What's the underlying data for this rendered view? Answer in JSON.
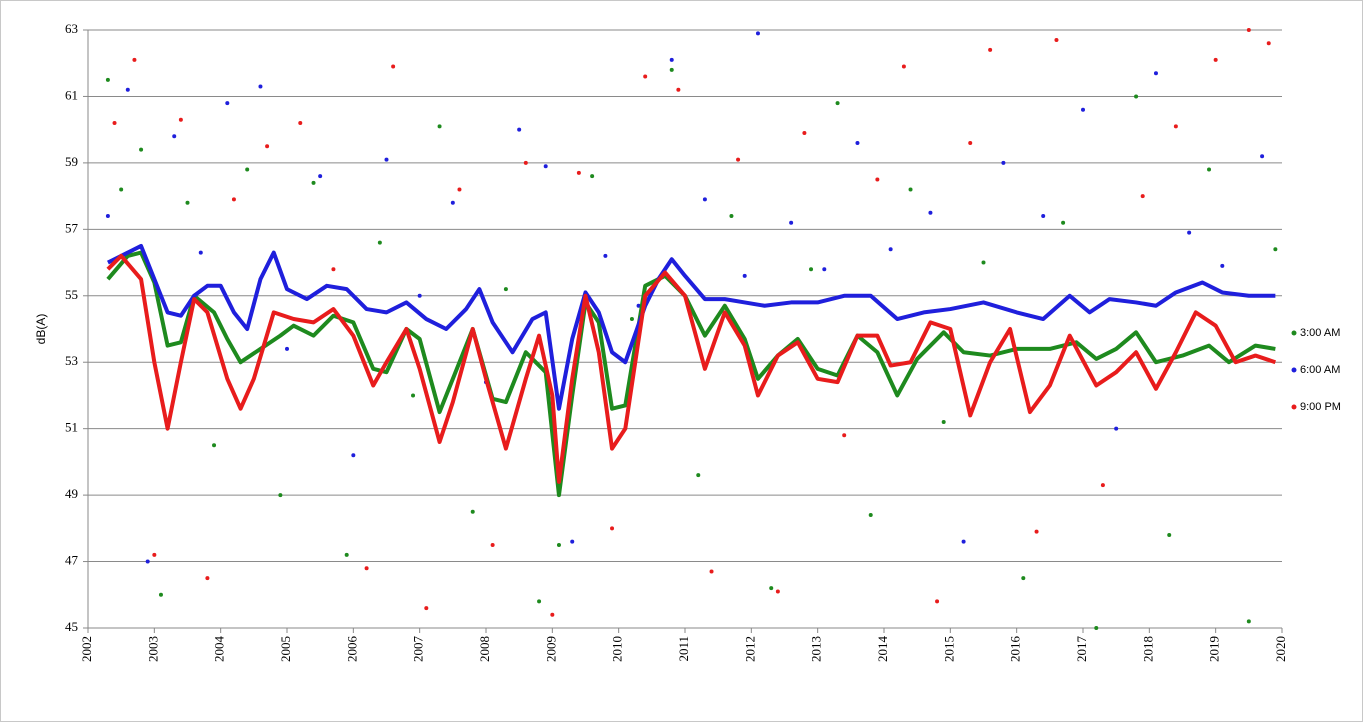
{
  "chart_data": {
    "type": "scatter",
    "y_label": "dB(A)",
    "xlim": [
      2002,
      2020
    ],
    "xticks": [
      2002,
      2003,
      2004,
      2005,
      2006,
      2007,
      2008,
      2009,
      2010,
      2011,
      2012,
      2013,
      2014,
      2015,
      2016,
      2017,
      2018,
      2019,
      2020
    ],
    "ylim": [
      45,
      63
    ],
    "yticks": [
      45,
      47,
      49,
      51,
      53,
      55,
      57,
      59,
      61,
      63
    ],
    "grid": true,
    "legend": "right",
    "series": [
      {
        "name": "3:00 AM",
        "color": "#1e8a1e",
        "x": [
          2002.3,
          2002.5,
          2002.8,
          2003.1,
          2003.5,
          2003.9,
          2004.4,
          2004.9,
          2005.4,
          2005.9,
          2006.4,
          2006.9,
          2007.3,
          2007.8,
          2008.3,
          2008.8,
          2009.1,
          2009.6,
          2010.2,
          2010.8,
          2011.2,
          2011.7,
          2012.3,
          2012.9,
          2013.3,
          2013.8,
          2014.4,
          2014.9,
          2015.5,
          2016.1,
          2016.7,
          2017.2,
          2017.8,
          2018.3,
          2018.9,
          2019.5,
          2019.9
        ],
        "values": [
          61.5,
          58.2,
          59.4,
          46.0,
          57.8,
          50.5,
          58.8,
          49.0,
          58.4,
          47.2,
          56.6,
          52.0,
          60.1,
          48.5,
          55.2,
          45.8,
          47.5,
          58.6,
          54.3,
          61.8,
          49.6,
          57.4,
          46.2,
          55.8,
          60.8,
          48.4,
          58.2,
          51.2,
          56.0,
          46.5,
          57.2,
          45.0,
          61.0,
          47.8,
          58.8,
          45.2,
          56.4
        ],
        "trend_x": [
          2002.3,
          2002.6,
          2002.8,
          2003.0,
          2003.2,
          2003.4,
          2003.6,
          2003.9,
          2004.1,
          2004.3,
          2004.6,
          2004.9,
          2005.1,
          2005.4,
          2005.7,
          2006.0,
          2006.3,
          2006.5,
          2006.8,
          2007.0,
          2007.3,
          2007.5,
          2007.8,
          2008.1,
          2008.3,
          2008.6,
          2008.9,
          2009.1,
          2009.3,
          2009.5,
          2009.7,
          2009.9,
          2010.1,
          2010.4,
          2010.7,
          2011.0,
          2011.3,
          2011.6,
          2011.9,
          2012.1,
          2012.4,
          2012.7,
          2013.0,
          2013.3,
          2013.6,
          2013.9,
          2014.2,
          2014.5,
          2014.9,
          2015.2,
          2015.6,
          2016.0,
          2016.5,
          2016.9,
          2017.2,
          2017.5,
          2017.8,
          2018.1,
          2018.5,
          2018.9,
          2019.2,
          2019.6,
          2019.9
        ],
        "trend_values": [
          55.5,
          56.2,
          56.3,
          55.4,
          53.5,
          53.6,
          55.0,
          54.5,
          53.7,
          53.0,
          53.4,
          53.8,
          54.1,
          53.8,
          54.4,
          54.2,
          52.8,
          52.7,
          54.0,
          53.7,
          51.5,
          52.5,
          54.0,
          51.9,
          51.8,
          53.3,
          52.7,
          49.0,
          52.0,
          54.8,
          54.2,
          51.6,
          51.7,
          55.3,
          55.6,
          55.0,
          53.8,
          54.7,
          53.7,
          52.5,
          53.2,
          53.7,
          52.8,
          52.6,
          53.8,
          53.3,
          52.0,
          53.1,
          53.9,
          53.3,
          53.2,
          53.4,
          53.4,
          53.6,
          53.1,
          53.4,
          53.9,
          53.0,
          53.2,
          53.5,
          53.0,
          53.5,
          53.4
        ]
      },
      {
        "name": "6:00 AM",
        "color": "#1f1fdc",
        "x": [
          2002.3,
          2002.6,
          2002.9,
          2003.3,
          2003.7,
          2004.1,
          2004.6,
          2005.0,
          2005.5,
          2006.0,
          2006.5,
          2007.0,
          2007.5,
          2008.0,
          2008.5,
          2008.9,
          2009.3,
          2009.8,
          2010.3,
          2010.8,
          2011.3,
          2011.9,
          2012.1,
          2012.6,
          2013.1,
          2013.6,
          2014.1,
          2014.7,
          2015.2,
          2015.8,
          2016.4,
          2017.0,
          2017.5,
          2018.1,
          2018.6,
          2019.1,
          2019.7
        ],
        "values": [
          57.4,
          61.2,
          47.0,
          59.8,
          56.3,
          60.8,
          61.3,
          53.4,
          58.6,
          50.2,
          59.1,
          55.0,
          57.8,
          52.4,
          60.0,
          58.9,
          47.6,
          56.2,
          54.7,
          62.1,
          57.9,
          55.6,
          62.9,
          57.2,
          55.8,
          59.6,
          56.4,
          57.5,
          47.6,
          59.0,
          57.4,
          60.6,
          51.0,
          61.7,
          56.9,
          55.9,
          59.2
        ],
        "trend_x": [
          2002.3,
          2002.6,
          2002.8,
          2003.0,
          2003.2,
          2003.4,
          2003.6,
          2003.8,
          2004.0,
          2004.2,
          2004.4,
          2004.6,
          2004.8,
          2005.0,
          2005.3,
          2005.6,
          2005.9,
          2006.2,
          2006.5,
          2006.8,
          2007.1,
          2007.4,
          2007.7,
          2007.9,
          2008.1,
          2008.4,
          2008.7,
          2008.9,
          2009.1,
          2009.3,
          2009.5,
          2009.7,
          2009.9,
          2010.1,
          2010.4,
          2010.6,
          2010.8,
          2011.0,
          2011.3,
          2011.6,
          2011.9,
          2012.2,
          2012.6,
          2013.0,
          2013.4,
          2013.8,
          2014.2,
          2014.6,
          2015.0,
          2015.5,
          2016.0,
          2016.4,
          2016.8,
          2017.1,
          2017.4,
          2017.8,
          2018.1,
          2018.4,
          2018.8,
          2019.1,
          2019.5,
          2019.9
        ],
        "trend_values": [
          56.0,
          56.3,
          56.5,
          55.5,
          54.5,
          54.4,
          55.0,
          55.3,
          55.3,
          54.5,
          54.0,
          55.5,
          56.3,
          55.2,
          54.9,
          55.3,
          55.2,
          54.6,
          54.5,
          54.8,
          54.3,
          54.0,
          54.6,
          55.2,
          54.2,
          53.3,
          54.3,
          54.5,
          51.6,
          53.7,
          55.1,
          54.5,
          53.3,
          53.0,
          54.7,
          55.5,
          56.1,
          55.6,
          54.9,
          54.9,
          54.8,
          54.7,
          54.8,
          54.8,
          55.0,
          55.0,
          54.3,
          54.5,
          54.6,
          54.8,
          54.5,
          54.3,
          55.0,
          54.5,
          54.9,
          54.8,
          54.7,
          55.1,
          55.4,
          55.1,
          55.0,
          55.0
        ]
      },
      {
        "name": "9:00 PM",
        "color": "#e81c1c",
        "x": [
          2002.4,
          2002.7,
          2003.0,
          2003.4,
          2003.8,
          2004.2,
          2004.7,
          2005.2,
          2005.7,
          2006.2,
          2006.6,
          2007.1,
          2007.6,
          2008.1,
          2008.6,
          2009.0,
          2009.4,
          2009.9,
          2010.4,
          2010.9,
          2011.4,
          2011.8,
          2012.4,
          2012.8,
          2013.4,
          2013.9,
          2014.3,
          2014.8,
          2015.3,
          2015.6,
          2016.3,
          2016.6,
          2017.3,
          2017.9,
          2018.4,
          2019.0,
          2019.5,
          2019.8
        ],
        "values": [
          60.2,
          62.1,
          47.2,
          60.3,
          46.5,
          57.9,
          59.5,
          60.2,
          55.8,
          46.8,
          61.9,
          45.6,
          58.2,
          47.5,
          59.0,
          45.4,
          58.7,
          48.0,
          61.6,
          61.2,
          46.7,
          59.1,
          46.1,
          59.9,
          50.8,
          58.5,
          61.9,
          45.8,
          59.6,
          62.4,
          47.9,
          62.7,
          49.3,
          58.0,
          60.1,
          62.1,
          63.0,
          62.6
        ],
        "trend_x": [
          2002.3,
          2002.5,
          2002.8,
          2003.0,
          2003.2,
          2003.4,
          2003.6,
          2003.8,
          2004.1,
          2004.3,
          2004.5,
          2004.8,
          2005.1,
          2005.4,
          2005.7,
          2006.0,
          2006.3,
          2006.5,
          2006.8,
          2007.0,
          2007.3,
          2007.5,
          2007.8,
          2008.0,
          2008.3,
          2008.6,
          2008.8,
          2009.0,
          2009.1,
          2009.3,
          2009.5,
          2009.7,
          2009.9,
          2010.1,
          2010.4,
          2010.7,
          2011.0,
          2011.3,
          2011.6,
          2011.9,
          2012.1,
          2012.4,
          2012.7,
          2013.0,
          2013.3,
          2013.6,
          2013.9,
          2014.1,
          2014.4,
          2014.7,
          2015.0,
          2015.3,
          2015.6,
          2015.9,
          2016.2,
          2016.5,
          2016.8,
          2017.2,
          2017.5,
          2017.8,
          2018.1,
          2018.4,
          2018.7,
          2019.0,
          2019.3,
          2019.6,
          2019.9
        ],
        "trend_values": [
          55.8,
          56.2,
          55.5,
          53.0,
          51.0,
          53.0,
          54.9,
          54.5,
          52.5,
          51.6,
          52.5,
          54.5,
          54.3,
          54.2,
          54.6,
          53.8,
          52.3,
          53.0,
          54.0,
          52.8,
          50.6,
          51.8,
          54.0,
          52.5,
          50.4,
          52.5,
          53.8,
          52.0,
          49.4,
          52.5,
          55.0,
          53.3,
          50.4,
          51.0,
          55.0,
          55.7,
          55.0,
          52.8,
          54.5,
          53.5,
          52.0,
          53.2,
          53.6,
          52.5,
          52.4,
          53.8,
          53.8,
          52.9,
          53.0,
          54.2,
          54.0,
          51.4,
          53.0,
          54.0,
          51.5,
          52.3,
          53.8,
          52.3,
          52.7,
          53.3,
          52.2,
          53.3,
          54.5,
          54.1,
          53.0,
          53.2,
          53.0
        ]
      }
    ]
  }
}
